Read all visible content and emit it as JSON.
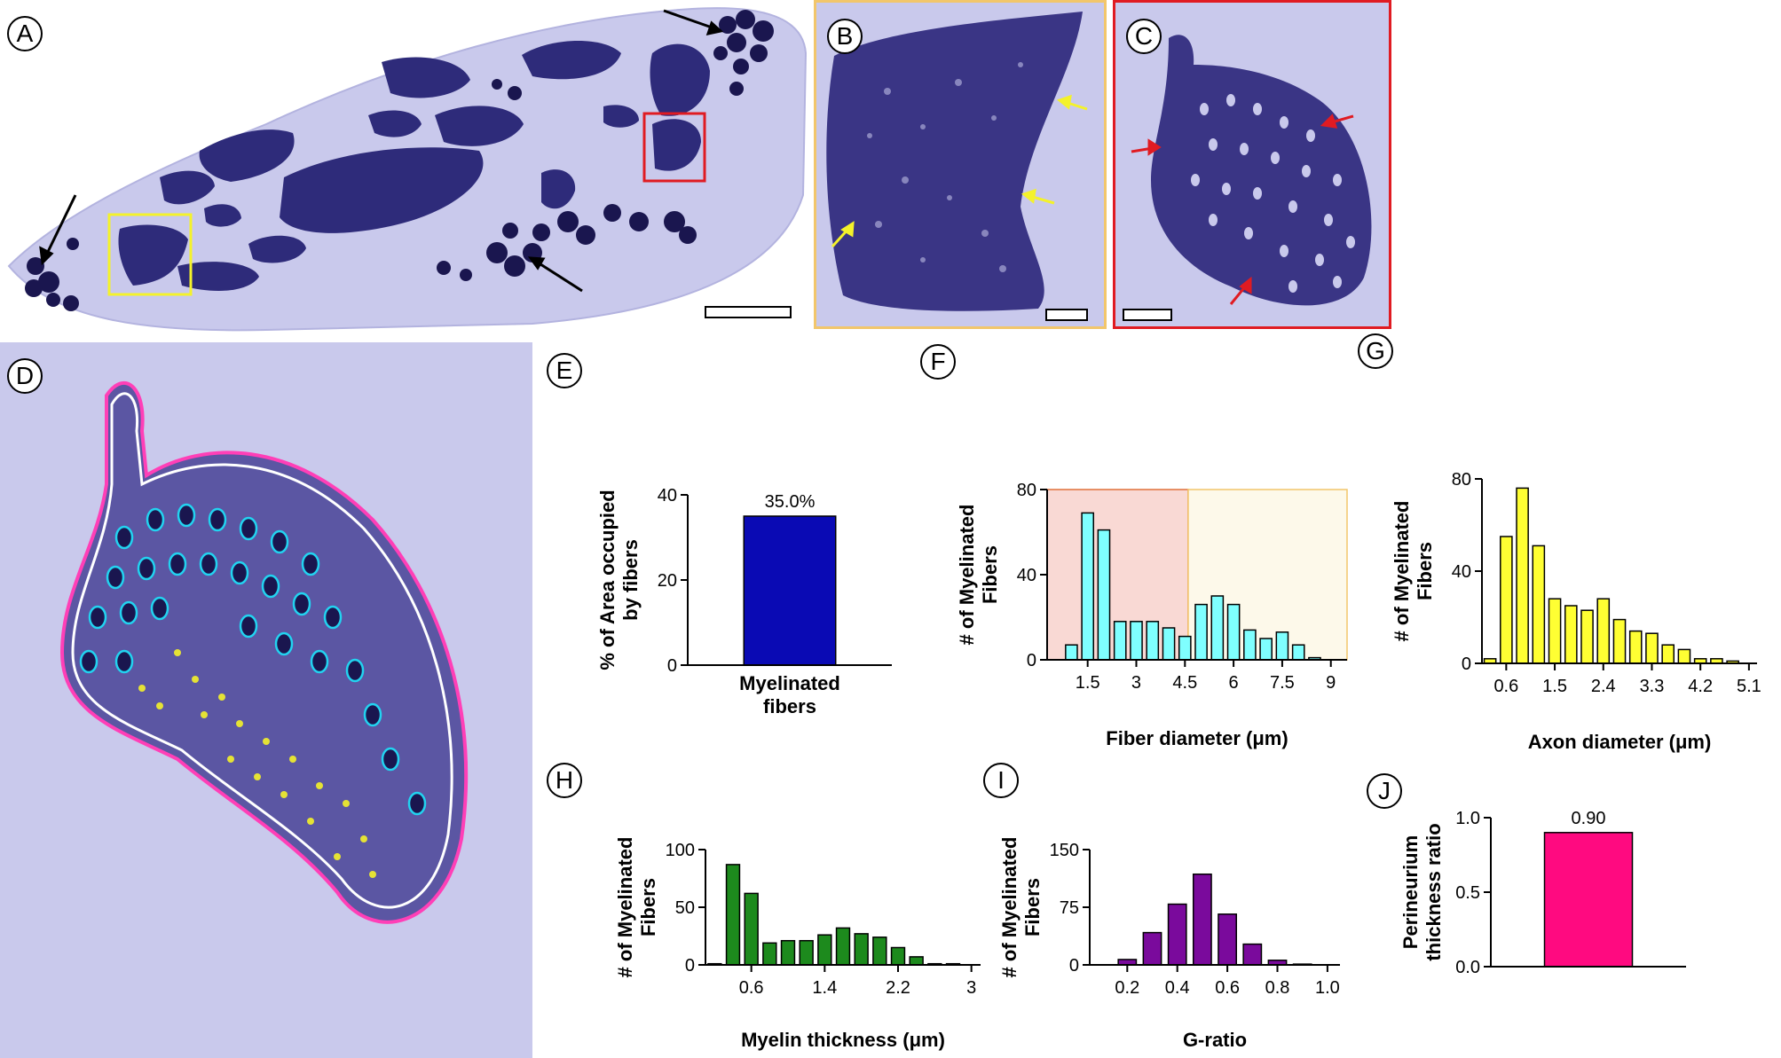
{
  "figure": {
    "panels": {
      "A": "A",
      "B": "B",
      "C": "C",
      "D": "D",
      "E": "E",
      "F": "F",
      "G": "G",
      "H": "H",
      "I": "I",
      "J": "J"
    },
    "colors": {
      "tissue_bg": "#c9c9ec",
      "fascicle": "#2e2b7a",
      "myelin_dark": "#1a164f",
      "panel_b_border": "#f2c66b",
      "panel_c_border": "#e01b22",
      "roi_cyan": "#22d3f0",
      "roi_magenta": "#ff3fb7",
      "roi_yellow": "#f4f22a"
    }
  },
  "chart_data": [
    {
      "panel": "E",
      "type": "bar",
      "categories": [
        "Myelinated\nfibers"
      ],
      "category_lines": [
        "Myelinated",
        "fibers"
      ],
      "values": [
        35.0
      ],
      "data_labels": [
        "35.0%"
      ],
      "ylabel_lines": [
        "% of Area occupied",
        "by fibers"
      ],
      "yticks": [
        "0",
        "20",
        "40"
      ],
      "ylim": [
        0,
        40
      ],
      "color": "#0a0ab4"
    },
    {
      "panel": "F",
      "type": "bar",
      "subtype": "histogram",
      "x": [
        1.0,
        1.5,
        2.0,
        2.5,
        3.0,
        3.5,
        4.0,
        4.5,
        5.0,
        5.5,
        6.0,
        6.5,
        7.0,
        7.5,
        8.0,
        8.5,
        9.0
      ],
      "values": [
        7,
        69,
        61,
        18,
        18,
        18,
        15,
        11,
        26,
        30,
        26,
        14,
        10,
        13,
        7,
        1,
        0
      ],
      "xticks": [
        "1.5",
        "3",
        "4.5",
        "6",
        "7.5",
        "9"
      ],
      "xtick_values": [
        1.5,
        3,
        4.5,
        6,
        7.5,
        9
      ],
      "xlabel": "Fiber diameter (μm)",
      "ylabel_lines": [
        "# of Myelinated",
        "Fibers"
      ],
      "yticks": [
        "0",
        "40",
        "80"
      ],
      "ylim": [
        0,
        80
      ],
      "xlim": [
        0.25,
        9.5
      ],
      "color": "#7fffff",
      "shaded_regions": [
        {
          "from": 0.25,
          "to": 4.6,
          "color": "#f9d9d4",
          "edge": "#e0703a"
        },
        {
          "from": 4.6,
          "to": 9.5,
          "color": "#fdf9ea",
          "edge": "#f2c66b"
        }
      ]
    },
    {
      "panel": "G",
      "type": "bar",
      "subtype": "histogram",
      "x": [
        0.3,
        0.6,
        0.9,
        1.2,
        1.5,
        1.8,
        2.1,
        2.4,
        2.7,
        3.0,
        3.3,
        3.6,
        3.9,
        4.2,
        4.5,
        4.8,
        5.1
      ],
      "values": [
        2,
        55,
        76,
        51,
        28,
        25,
        23,
        28,
        19,
        14,
        13,
        8,
        6,
        2,
        2,
        1,
        0
      ],
      "xticks": [
        "0.6",
        "1.5",
        "2.4",
        "3.3",
        "4.2",
        "5.1"
      ],
      "xtick_values": [
        0.6,
        1.5,
        2.4,
        3.3,
        4.2,
        5.1
      ],
      "xlabel": "Axon diameter (μm)",
      "ylabel_lines": [
        "# of Myelinated",
        "Fibers"
      ],
      "yticks": [
        "0",
        "40",
        "80"
      ],
      "ylim": [
        0,
        80
      ],
      "xlim": [
        0.15,
        5.25
      ],
      "color": "#ffff33"
    },
    {
      "panel": "H",
      "type": "bar",
      "subtype": "histogram",
      "x": [
        0.2,
        0.4,
        0.6,
        0.8,
        1.0,
        1.2,
        1.4,
        1.6,
        1.8,
        2.0,
        2.2,
        2.4,
        2.6,
        2.8,
        3.0
      ],
      "values": [
        1,
        87,
        62,
        19,
        21,
        21,
        26,
        32,
        27,
        24,
        15,
        7,
        1,
        1,
        0
      ],
      "xticks": [
        "0.6",
        "1.4",
        "2.2",
        "3"
      ],
      "xtick_values": [
        0.6,
        1.4,
        2.2,
        3.0
      ],
      "xlabel": "Myelin thickness (μm)",
      "ylabel_lines": [
        "# of Myelinated",
        "Fibers"
      ],
      "yticks": [
        "0",
        "50",
        "100"
      ],
      "ylim": [
        0,
        100
      ],
      "xlim": [
        0.1,
        3.1
      ],
      "color": "#1d8a1d"
    },
    {
      "panel": "I",
      "type": "bar",
      "subtype": "histogram",
      "x": [
        0.1,
        0.2,
        0.3,
        0.4,
        0.5,
        0.6,
        0.7,
        0.8,
        0.9,
        1.0
      ],
      "values": [
        0,
        7,
        42,
        79,
        118,
        66,
        27,
        6,
        1,
        0
      ],
      "xticks": [
        "0.2",
        "0.4",
        "0.6",
        "0.8",
        "1.0"
      ],
      "xtick_values": [
        0.2,
        0.4,
        0.6,
        0.8,
        1.0
      ],
      "xlabel": "G-ratio",
      "ylabel_lines": [
        "# of Myelinated",
        "Fibers"
      ],
      "yticks": [
        "0",
        "75",
        "150"
      ],
      "ylim": [
        0,
        150
      ],
      "xlim": [
        0.05,
        1.05
      ],
      "color": "#7a0a9c"
    },
    {
      "panel": "J",
      "type": "bar",
      "categories": [
        ""
      ],
      "values": [
        0.9
      ],
      "data_labels": [
        "0.90"
      ],
      "ylabel_lines": [
        "Perineurium",
        "thickness ratio"
      ],
      "yticks": [
        "0.0",
        "0.5",
        "1.0"
      ],
      "ylim": [
        0,
        1.0
      ],
      "color": "#ff0a80"
    }
  ]
}
